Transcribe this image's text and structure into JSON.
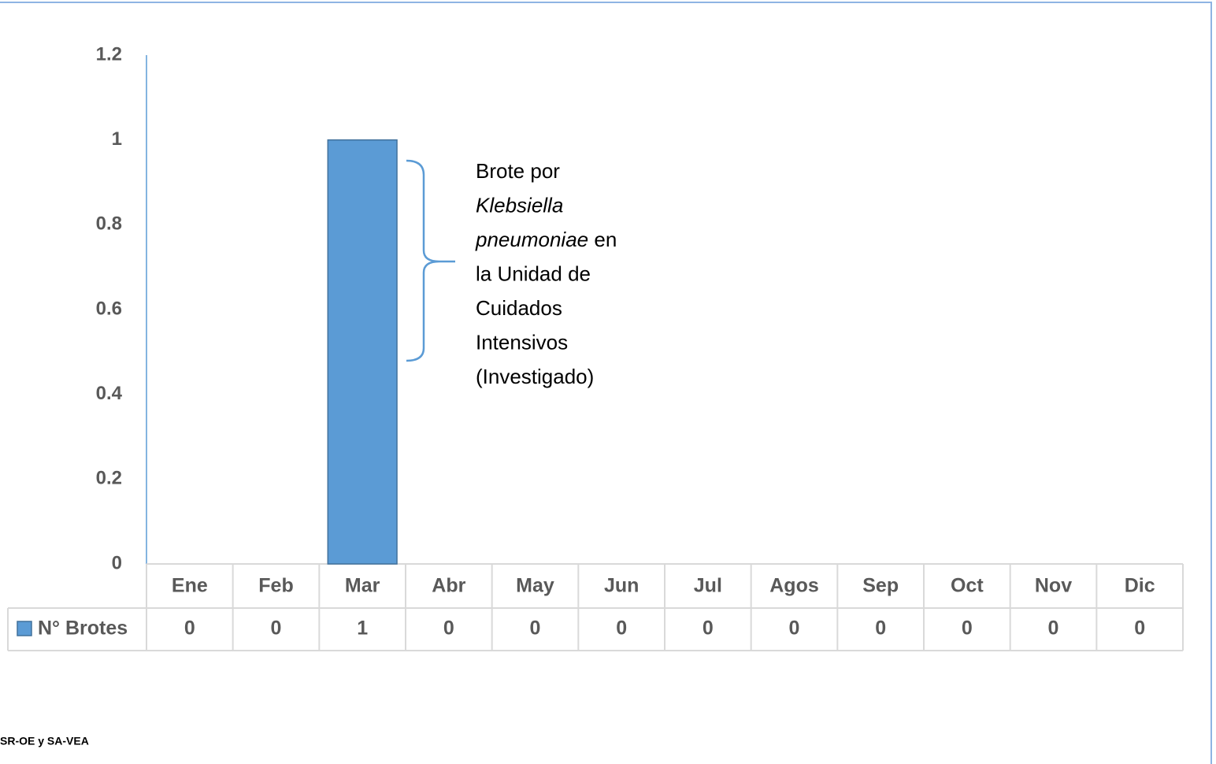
{
  "chart_data": {
    "type": "bar",
    "categories": [
      "Ene",
      "Feb",
      "Mar",
      "Abr",
      "May",
      "Jun",
      "Jul",
      "Agos",
      "Sep",
      "Oct",
      "Nov",
      "Dic"
    ],
    "series": [
      {
        "name": "N° Brotes",
        "color": "#5b9bd5",
        "values": [
          0,
          0,
          1,
          0,
          0,
          0,
          0,
          0,
          0,
          0,
          0,
          0
        ]
      }
    ],
    "ylim": [
      0,
      1.2
    ],
    "yticks": [
      0,
      0.2,
      0.4,
      0.6,
      0.8,
      1,
      1.2
    ],
    "annotation": {
      "lines": [
        [
          {
            "text": "Brote por"
          }
        ],
        [
          {
            "text": "Klebsiella",
            "italic": true
          }
        ],
        [
          {
            "text": "pneumoniae",
            "italic": true
          },
          {
            "text": "en"
          }
        ],
        [
          {
            "text": "la Unidad de"
          }
        ],
        [
          {
            "text": "Cuidados"
          }
        ],
        [
          {
            "text": "Intensivos"
          }
        ],
        [
          {
            "text": "(Investigado)"
          }
        ]
      ]
    },
    "source": "SR-OE y SA-VEA"
  }
}
